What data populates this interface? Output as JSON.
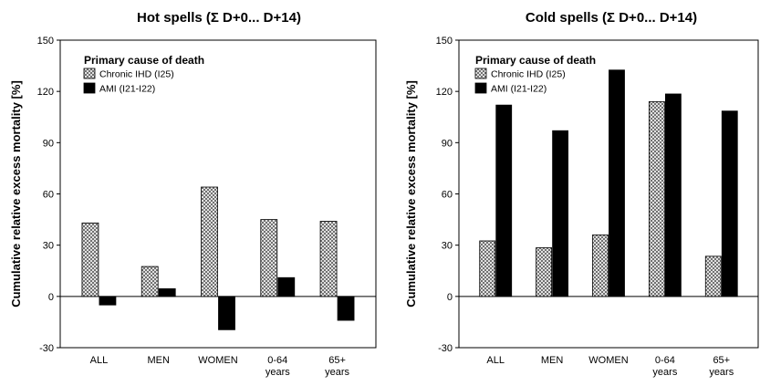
{
  "chart_data": [
    {
      "type": "bar",
      "title": "Hot spells (Σ D+0... D+14)",
      "ylabel": "Cumulative relative excess mortality [%]",
      "xlabel": "",
      "ylim": [
        -30,
        150
      ],
      "yticks": [
        "-30",
        "0",
        "30",
        "60",
        "90",
        "120",
        "150"
      ],
      "categories": [
        [
          "ALL"
        ],
        [
          "MEN"
        ],
        [
          "WOMEN"
        ],
        [
          "0-64",
          "years"
        ],
        [
          "65+",
          "years"
        ]
      ],
      "legend_title": "Primary cause of death",
      "legend_position": "top-left",
      "grid": false,
      "series": [
        {
          "name": "Chronic IHD (I25)",
          "pattern": "crosshatch",
          "values": [
            43,
            17.5,
            64,
            45,
            44
          ]
        },
        {
          "name": "AMI (I21-I22)",
          "pattern": "solid-black",
          "values": [
            -5,
            4.5,
            -19.5,
            11,
            -14
          ]
        }
      ]
    },
    {
      "type": "bar",
      "title": "Cold spells (Σ D+0... D+14)",
      "ylabel": "Cumulative relative excess mortality [%]",
      "xlabel": "",
      "ylim": [
        -30,
        150
      ],
      "yticks": [
        "-30",
        "0",
        "30",
        "60",
        "90",
        "120",
        "150"
      ],
      "categories": [
        [
          "ALL"
        ],
        [
          "MEN"
        ],
        [
          "WOMEN"
        ],
        [
          "0-64",
          "years"
        ],
        [
          "65+",
          "years"
        ]
      ],
      "legend_title": "Primary cause of death",
      "legend_position": "top-left",
      "grid": false,
      "series": [
        {
          "name": "Chronic IHD (I25)",
          "pattern": "crosshatch",
          "values": [
            32.5,
            28.5,
            36,
            114,
            23.5
          ]
        },
        {
          "name": "AMI (I21-I22)",
          "pattern": "solid-black",
          "values": [
            112,
            97,
            132.5,
            118.5,
            108.5
          ]
        }
      ]
    }
  ]
}
